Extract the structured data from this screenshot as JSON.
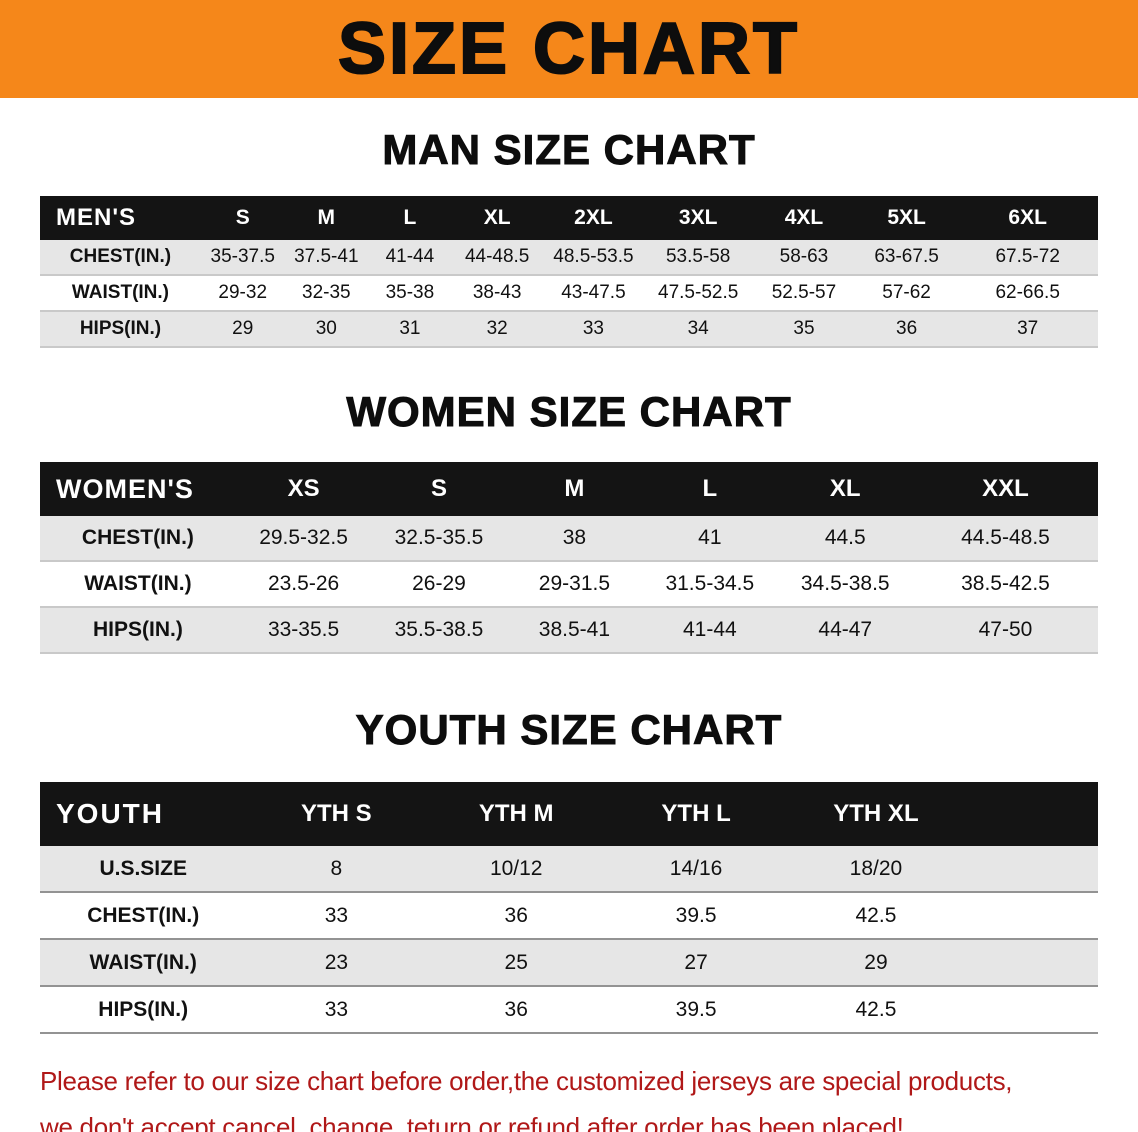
{
  "banner": {
    "title": "SIZE CHART",
    "bg_color": "#F5871A"
  },
  "men": {
    "heading": "MAN SIZE CHART",
    "header": [
      "MEN'S",
      "S",
      "M",
      "L",
      "XL",
      "2XL",
      "3XL",
      "4XL",
      "5XL",
      "6XL"
    ],
    "rows": [
      [
        "CHEST(IN.)",
        "35-37.5",
        "37.5-41",
        "41-44",
        "44-48.5",
        "48.5-53.5",
        "53.5-58",
        "58-63",
        "63-67.5",
        "67.5-72"
      ],
      [
        "WAIST(IN.)",
        "29-32",
        "32-35",
        "35-38",
        "38-43",
        "43-47.5",
        "47.5-52.5",
        "52.5-57",
        "57-62",
        "62-66.5"
      ],
      [
        "HIPS(IN.)",
        "29",
        "30",
        "31",
        "32",
        "33",
        "34",
        "35",
        "36",
        "37"
      ]
    ]
  },
  "women": {
    "heading": "WOMEN SIZE CHART",
    "header": [
      "WOMEN'S",
      "XS",
      "S",
      "M",
      "L",
      "XL",
      "XXL"
    ],
    "rows": [
      [
        "CHEST(IN.)",
        "29.5-32.5",
        "32.5-35.5",
        "38",
        "41",
        "44.5",
        "44.5-48.5"
      ],
      [
        "WAIST(IN.)",
        "23.5-26",
        "26-29",
        "29-31.5",
        "31.5-34.5",
        "34.5-38.5",
        "38.5-42.5"
      ],
      [
        "HIPS(IN.)",
        "33-35.5",
        "35.5-38.5",
        "38.5-41",
        "41-44",
        "44-47",
        "47-50"
      ]
    ]
  },
  "youth": {
    "heading": "YOUTH SIZE CHART",
    "header": [
      "YOUTH",
      "YTH S",
      "YTH M",
      "YTH L",
      "YTH XL"
    ],
    "rows": [
      [
        "U.S.SIZE",
        "8",
        "10/12",
        "14/16",
        "18/20"
      ],
      [
        "CHEST(IN.)",
        "33",
        "36",
        "39.5",
        "42.5"
      ],
      [
        "WAIST(IN.)",
        "23",
        "25",
        "27",
        "29"
      ],
      [
        "HIPS(IN.)",
        "33",
        "36",
        "39.5",
        "42.5"
      ]
    ]
  },
  "notice": {
    "line1": "Please refer to our size chart before order,the customized jerseys are special products,",
    "line2": "we don't accept cancel, change, teturn or refund after order has been placed!",
    "text_color": "#B01818"
  },
  "colors": {
    "table_header_bg": "#141414",
    "row_stripe": "#E6E6E6"
  }
}
